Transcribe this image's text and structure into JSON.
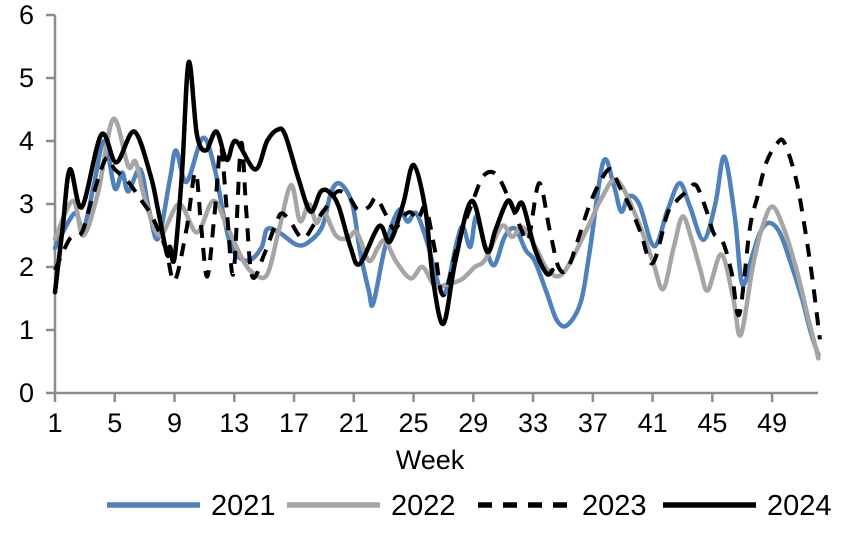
{
  "chart_data": {
    "type": "line",
    "title": "",
    "xlabel": "Week",
    "ylabel": "",
    "xlim": [
      1,
      52
    ],
    "ylim": [
      0,
      6
    ],
    "yticks": [
      0,
      1,
      2,
      3,
      4,
      5,
      6
    ],
    "xticks": [
      1,
      5,
      9,
      13,
      17,
      21,
      25,
      29,
      33,
      37,
      41,
      45,
      49
    ],
    "grid": false,
    "legend_position": "bottom",
    "axis_color": "#8C8C8C",
    "series": [
      {
        "name": "2021",
        "color": "#4F81BD",
        "dash": "solid",
        "points": [
          [
            1,
            2.3
          ],
          [
            2.3,
            2.85
          ],
          [
            2.9,
            2.6
          ],
          [
            3.6,
            3.3
          ],
          [
            4.3,
            4.0
          ],
          [
            5,
            3.25
          ],
          [
            5.5,
            3.5
          ],
          [
            5.9,
            3.2
          ],
          [
            6.7,
            3.55
          ],
          [
            7.3,
            2.9
          ],
          [
            7.9,
            2.45
          ],
          [
            8.7,
            3.4
          ],
          [
            9.1,
            3.85
          ],
          [
            9.8,
            3.35
          ],
          [
            10.9,
            4.05
          ],
          [
            11.7,
            3.55
          ],
          [
            12.3,
            2.8
          ],
          [
            12.9,
            2.27
          ],
          [
            13.9,
            2.1
          ],
          [
            14.8,
            2.3
          ],
          [
            15.2,
            2.6
          ],
          [
            16,
            2.55
          ],
          [
            17.2,
            2.35
          ],
          [
            18,
            2.4
          ],
          [
            18.9,
            2.65
          ],
          [
            19.5,
            3.2
          ],
          [
            20.1,
            3.32
          ],
          [
            20.9,
            3.0
          ],
          [
            21.4,
            2.27
          ],
          [
            22,
            1.63
          ],
          [
            22.3,
            1.42
          ],
          [
            23.1,
            2.32
          ],
          [
            24,
            2.9
          ],
          [
            24.6,
            2.72
          ],
          [
            25.2,
            2.85
          ],
          [
            26,
            2.32
          ],
          [
            26.5,
            1.85
          ],
          [
            27.1,
            1.58
          ],
          [
            27.9,
            2.4
          ],
          [
            28.3,
            2.64
          ],
          [
            28.8,
            2.32
          ],
          [
            29.2,
            2.8
          ],
          [
            29.8,
            2.32
          ],
          [
            30.4,
            2.03
          ],
          [
            31.1,
            2.48
          ],
          [
            31.8,
            2.61
          ],
          [
            32.5,
            2.27
          ],
          [
            33.1,
            2.1
          ],
          [
            33.9,
            1.6
          ],
          [
            34.6,
            1.15
          ],
          [
            35.3,
            1.08
          ],
          [
            36.2,
            1.45
          ],
          [
            36.8,
            2.27
          ],
          [
            37.7,
            3.67
          ],
          [
            38.4,
            3.3
          ],
          [
            38.9,
            2.88
          ],
          [
            39.4,
            3.12
          ],
          [
            40.1,
            3.0
          ],
          [
            41.1,
            2.33
          ],
          [
            42,
            2.9
          ],
          [
            42.8,
            3.33
          ],
          [
            43.5,
            2.96
          ],
          [
            44.4,
            2.43
          ],
          [
            45.2,
            3.0
          ],
          [
            45.8,
            3.75
          ],
          [
            46.5,
            2.8
          ],
          [
            47,
            1.73
          ],
          [
            47.7,
            2.2
          ],
          [
            48.2,
            2.55
          ],
          [
            48.8,
            2.7
          ],
          [
            49.5,
            2.55
          ],
          [
            50.2,
            2.1
          ],
          [
            51,
            1.5
          ],
          [
            51.6,
            0.95
          ],
          [
            52.1,
            0.6
          ]
        ]
      },
      {
        "name": "2022",
        "color": "#A5A5A5",
        "dash": "solid",
        "points": [
          [
            1,
            2.45
          ],
          [
            2.2,
            3.05
          ],
          [
            2.9,
            2.5
          ],
          [
            3.9,
            3.2
          ],
          [
            4.9,
            4.35
          ],
          [
            5.9,
            3.6
          ],
          [
            6.4,
            3.67
          ],
          [
            7,
            3.1
          ],
          [
            8,
            2.5
          ],
          [
            9.3,
            3.0
          ],
          [
            10.5,
            2.55
          ],
          [
            11.6,
            3.05
          ],
          [
            12.6,
            2.6
          ],
          [
            13.6,
            2.1
          ],
          [
            14.3,
            1.9
          ],
          [
            15.2,
            1.88
          ],
          [
            16,
            2.6
          ],
          [
            16.8,
            3.3
          ],
          [
            17.4,
            2.73
          ],
          [
            18,
            3.0
          ],
          [
            18.5,
            2.7
          ],
          [
            19,
            2.88
          ],
          [
            19.8,
            2.5
          ],
          [
            20.6,
            2.45
          ],
          [
            21.2,
            2.55
          ],
          [
            22,
            2.1
          ],
          [
            22.6,
            2.3
          ],
          [
            23.1,
            2.42
          ],
          [
            23.8,
            2.1
          ],
          [
            24.8,
            1.82
          ],
          [
            25.6,
            2.0
          ],
          [
            26.4,
            1.7
          ],
          [
            27.2,
            1.72
          ],
          [
            28.2,
            1.8
          ],
          [
            29.1,
            2.0
          ],
          [
            29.8,
            2.12
          ],
          [
            30.9,
            2.65
          ],
          [
            31.6,
            2.48
          ],
          [
            32.3,
            2.63
          ],
          [
            33.2,
            2.3
          ],
          [
            34,
            1.95
          ],
          [
            35,
            1.9
          ],
          [
            36.6,
            2.6
          ],
          [
            37.6,
            3.1
          ],
          [
            38.6,
            3.38
          ],
          [
            39.9,
            2.8
          ],
          [
            41,
            2.1
          ],
          [
            41.7,
            1.65
          ],
          [
            42.4,
            2.3
          ],
          [
            43,
            2.8
          ],
          [
            43.6,
            2.45
          ],
          [
            44.2,
            1.95
          ],
          [
            44.7,
            1.63
          ],
          [
            45.6,
            2.2
          ],
          [
            46.4,
            1.5
          ],
          [
            46.9,
            0.92
          ],
          [
            47.7,
            2.0
          ],
          [
            48.3,
            2.6
          ],
          [
            49,
            2.96
          ],
          [
            49.8,
            2.6
          ],
          [
            50.7,
            1.9
          ],
          [
            51.4,
            1.2
          ],
          [
            52.1,
            0.55
          ]
        ]
      },
      {
        "name": "2023",
        "color": "#000000",
        "dash": "dashed",
        "points": [
          [
            1,
            1.95
          ],
          [
            2,
            2.45
          ],
          [
            2.8,
            2.55
          ],
          [
            3.5,
            3.1
          ],
          [
            4.4,
            3.72
          ],
          [
            5,
            3.55
          ],
          [
            5.9,
            3.35
          ],
          [
            6.8,
            3.05
          ],
          [
            7.5,
            2.8
          ],
          [
            8.4,
            2.3
          ],
          [
            9,
            1.78
          ],
          [
            9.8,
            2.6
          ],
          [
            10.4,
            3.5
          ],
          [
            10.8,
            2.6
          ],
          [
            11.2,
            1.85
          ],
          [
            11.7,
            2.9
          ],
          [
            12.1,
            3.9
          ],
          [
            12.5,
            2.9
          ],
          [
            12.95,
            1.9
          ],
          [
            13.45,
            3.95
          ],
          [
            13.8,
            2.9
          ],
          [
            14.2,
            1.85
          ],
          [
            15,
            2.2
          ],
          [
            15.8,
            2.7
          ],
          [
            16.2,
            2.85
          ],
          [
            16.8,
            2.7
          ],
          [
            17.6,
            2.45
          ],
          [
            18.4,
            2.7
          ],
          [
            19.1,
            2.93
          ],
          [
            19.9,
            3.2
          ],
          [
            20.7,
            3.1
          ],
          [
            21.3,
            2.9
          ],
          [
            22,
            2.95
          ],
          [
            22.5,
            3.1
          ],
          [
            23.1,
            2.85
          ],
          [
            23.7,
            2.6
          ],
          [
            24.3,
            2.8
          ],
          [
            24.8,
            2.87
          ],
          [
            25.3,
            2.75
          ],
          [
            25.8,
            2.95
          ],
          [
            26.4,
            2.3
          ],
          [
            27,
            1.55
          ],
          [
            28,
            2.4
          ],
          [
            28.9,
            3.0
          ],
          [
            29.7,
            3.45
          ],
          [
            30.6,
            3.45
          ],
          [
            31.6,
            2.95
          ],
          [
            32.2,
            2.6
          ],
          [
            32.7,
            2.45
          ],
          [
            33.4,
            3.33
          ],
          [
            34.1,
            2.6
          ],
          [
            34.7,
            2.0
          ],
          [
            35.3,
            1.97
          ],
          [
            36,
            2.43
          ],
          [
            36.8,
            3.0
          ],
          [
            37.6,
            3.4
          ],
          [
            38.2,
            3.55
          ],
          [
            38.8,
            3.27
          ],
          [
            39.5,
            2.95
          ],
          [
            40.2,
            2.55
          ],
          [
            41,
            2.06
          ],
          [
            42,
            2.85
          ],
          [
            42.6,
            3.05
          ],
          [
            43.3,
            3.2
          ],
          [
            43.9,
            3.3
          ],
          [
            44.6,
            2.9
          ],
          [
            45.1,
            2.53
          ],
          [
            45.7,
            2.4
          ],
          [
            46.3,
            1.9
          ],
          [
            46.8,
            1.25
          ],
          [
            47.5,
            2.6
          ],
          [
            48,
            3.1
          ],
          [
            48.6,
            3.65
          ],
          [
            49.3,
            3.95
          ],
          [
            49.8,
            3.98
          ],
          [
            50.6,
            3.4
          ],
          [
            51.2,
            2.6
          ],
          [
            51.7,
            1.8
          ],
          [
            52.2,
            0.85
          ]
        ]
      },
      {
        "name": "2024",
        "color": "#000000",
        "dash": "solid",
        "points": [
          [
            1,
            1.6
          ],
          [
            1.5,
            2.6
          ],
          [
            2,
            3.55
          ],
          [
            2.8,
            2.95
          ],
          [
            4.1,
            4.1
          ],
          [
            5.1,
            3.66
          ],
          [
            6.3,
            4.15
          ],
          [
            7.4,
            3.45
          ],
          [
            7.9,
            2.9
          ],
          [
            8.5,
            2.2
          ],
          [
            8.7,
            2.32
          ],
          [
            9,
            2.14
          ],
          [
            9.5,
            3.5
          ],
          [
            9.95,
            5.25
          ],
          [
            10.5,
            4.1
          ],
          [
            11.1,
            3.85
          ],
          [
            11.8,
            4.15
          ],
          [
            12.5,
            3.7
          ],
          [
            13.1,
            4.0
          ],
          [
            14.4,
            3.55
          ],
          [
            15.2,
            4.0
          ],
          [
            15.9,
            4.18
          ],
          [
            16.4,
            4.1
          ],
          [
            17.3,
            3.4
          ],
          [
            18.1,
            2.88
          ],
          [
            18.8,
            3.2
          ],
          [
            19.4,
            3.18
          ],
          [
            20,
            2.95
          ],
          [
            20.8,
            2.3
          ],
          [
            21.4,
            2.05
          ],
          [
            22.7,
            2.65
          ],
          [
            23.4,
            2.4
          ],
          [
            24.3,
            3.0
          ],
          [
            25,
            3.62
          ],
          [
            25.8,
            2.9
          ],
          [
            26.3,
            1.8
          ],
          [
            27,
            1.1
          ],
          [
            27.8,
            2.1
          ],
          [
            28.9,
            3.05
          ],
          [
            29.9,
            2.25
          ],
          [
            30.5,
            2.6
          ],
          [
            31.3,
            3.05
          ],
          [
            31.8,
            2.88
          ],
          [
            32.3,
            3.0
          ],
          [
            33.1,
            2.3
          ],
          [
            33.9,
            1.9
          ],
          [
            34.3,
            1.95
          ]
        ]
      }
    ],
    "legend": [
      {
        "label": "2021",
        "color": "#4F81BD",
        "dash": "solid"
      },
      {
        "label": "2022",
        "color": "#A5A5A5",
        "dash": "solid"
      },
      {
        "label": "2023",
        "color": "#000000",
        "dash": "dashed"
      },
      {
        "label": "2024",
        "color": "#000000",
        "dash": "solid"
      }
    ]
  }
}
